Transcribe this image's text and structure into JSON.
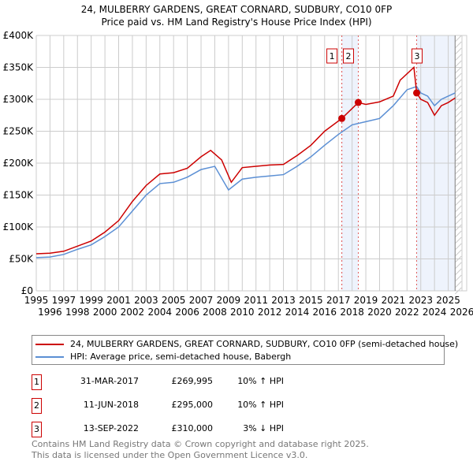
{
  "chart_data": {
    "type": "line",
    "title": "24, MULBERRY GARDENS, GREAT CORNARD, SUDBURY, CO10 0FP",
    "subtitle": "Price paid vs. HM Land Registry's House Price Index (HPI)",
    "xlim": [
      1995,
      2026
    ],
    "ylim": [
      0,
      400000
    ],
    "y_ticks": [
      0,
      50000,
      100000,
      150000,
      200000,
      250000,
      300000,
      350000,
      400000
    ],
    "y_tick_labels": [
      "£0",
      "£50K",
      "£100K",
      "£150K",
      "£200K",
      "£250K",
      "£300K",
      "£350K",
      "£400K"
    ],
    "x_tick_labels": [
      "1995",
      "1996",
      "1997",
      "1998",
      "1999",
      "2000",
      "2001",
      "2002",
      "2003",
      "2004",
      "2005",
      "2006",
      "2007",
      "2008",
      "2009",
      "2010",
      "2011",
      "2012",
      "2013",
      "2014",
      "2015",
      "2016",
      "2017",
      "2018",
      "2019",
      "2020",
      "2021",
      "2022",
      "2023",
      "2024",
      "2025",
      "2026"
    ],
    "grid": true,
    "series": [
      {
        "name": "24, MULBERRY GARDENS, GREAT CORNARD, SUDBURY, CO10 0FP (semi-detached house)",
        "color": "#cc0000",
        "x": [
          1995,
          1996,
          1997,
          1998,
          1999,
          2000,
          2001,
          2002,
          2003,
          2004,
          2005,
          2006,
          2007,
          2007.7,
          2008.5,
          2009.2,
          2010,
          2011,
          2012,
          2013,
          2014,
          2015,
          2016,
          2017.25,
          2018.45,
          2019,
          2020,
          2021,
          2021.5,
          2022.5,
          2022.7,
          2023,
          2023.5,
          2024,
          2024.5,
          2025,
          2025.5
        ],
        "y": [
          58000,
          59000,
          62000,
          70000,
          78000,
          92000,
          110000,
          140000,
          165000,
          183000,
          185000,
          192000,
          210000,
          220000,
          205000,
          170000,
          193000,
          195000,
          197000,
          198000,
          212000,
          228000,
          250000,
          269995,
          295000,
          292000,
          296000,
          305000,
          330000,
          350000,
          310000,
          300000,
          295000,
          275000,
          290000,
          295000,
          302000
        ]
      },
      {
        "name": "HPI: Average price, semi-detached house, Babergh",
        "color": "#5b8fd4",
        "x": [
          1995,
          1996,
          1997,
          1998,
          1999,
          2000,
          2001,
          2002,
          2003,
          2004,
          2005,
          2006,
          2007,
          2008,
          2009,
          2010,
          2011,
          2012,
          2013,
          2014,
          2015,
          2016,
          2017,
          2018,
          2019,
          2020,
          2021,
          2022,
          2022.7,
          2023,
          2023.5,
          2024,
          2024.5,
          2025,
          2025.5
        ],
        "y": [
          52000,
          53000,
          57000,
          65000,
          72000,
          85000,
          100000,
          125000,
          150000,
          168000,
          170000,
          178000,
          190000,
          195000,
          158000,
          175000,
          178000,
          180000,
          182000,
          195000,
          210000,
          228000,
          245000,
          260000,
          265000,
          270000,
          290000,
          315000,
          320000,
          310000,
          305000,
          290000,
          300000,
          305000,
          310000
        ]
      }
    ],
    "sales": [
      {
        "label": "1",
        "date": "31-MAR-2017",
        "x": 2017.25,
        "price": "£269,995",
        "value": 269995,
        "hpi": "10% ↑ HPI"
      },
      {
        "label": "2",
        "date": "11-JUN-2018",
        "x": 2018.45,
        "price": "£295,000",
        "value": 295000,
        "hpi": "10% ↑ HPI"
      },
      {
        "label": "3",
        "date": "13-SEP-2022",
        "x": 2022.7,
        "price": "£310,000",
        "value": 310000,
        "hpi": "3% ↓ HPI"
      }
    ],
    "shaded": [
      [
        2017.25,
        2018.45
      ],
      [
        2022.7,
        2025.5
      ]
    ]
  },
  "legend": {
    "red": "24, MULBERRY GARDENS, GREAT CORNARD, SUDBURY, CO10 0FP (semi-detached house)",
    "blue": "HPI: Average price, semi-detached house, Babergh"
  },
  "footer": {
    "line1": "Contains HM Land Registry data © Crown copyright and database right 2025.",
    "line2": "This data is licensed under the Open Government Licence v3.0."
  }
}
